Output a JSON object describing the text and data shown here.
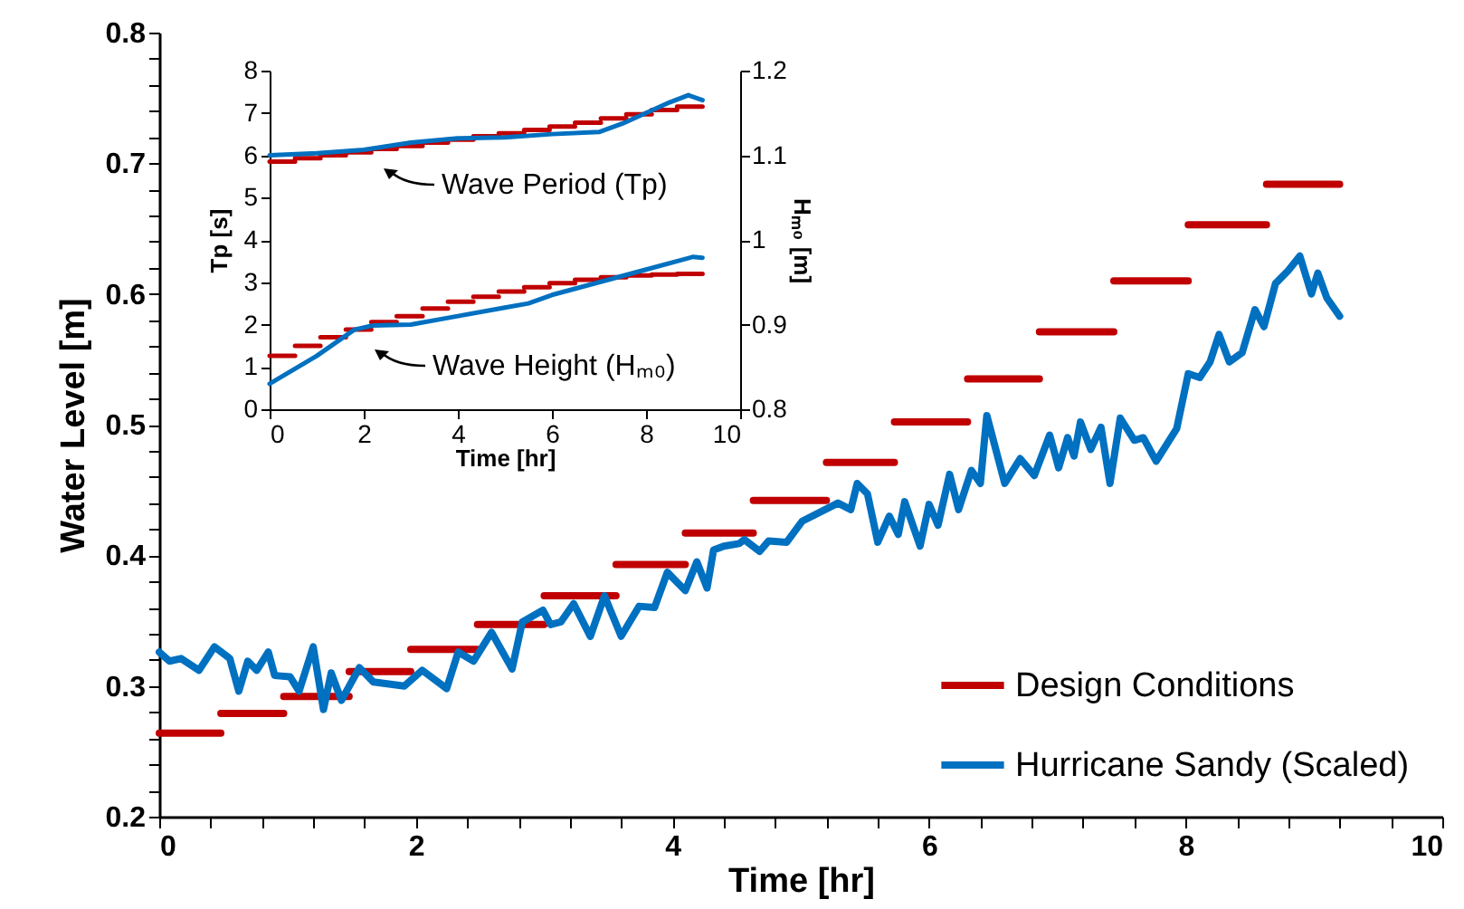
{
  "chart_data": [
    {
      "type": "line",
      "xlabel": "Time [hr]",
      "ylabel": "Water Level [m]",
      "legend": "bottom right",
      "xlim": [
        0,
        10
      ],
      "ylim": [
        0.2,
        0.8
      ],
      "xticks": [
        0,
        {
          "value": 0.4,
          "label": null
        },
        {
          "value": 0.8,
          "label": null
        },
        {
          "value": 1.2,
          "label": null
        },
        {
          "value": 1.6,
          "label": null
        },
        2,
        {
          "value": 2.4,
          "label": null
        },
        {
          "value": 2.8,
          "label": null
        },
        {
          "value": 3.2,
          "label": null
        },
        {
          "value": 3.6,
          "label": null
        },
        4,
        {
          "value": 4.4,
          "label": null
        },
        {
          "value": 4.8,
          "label": null
        },
        {
          "value": 5.2,
          "label": null
        },
        {
          "value": 5.6,
          "label": null
        },
        6,
        {
          "value": 6.4,
          "label": null
        },
        {
          "value": 6.8,
          "label": null
        },
        {
          "value": 7.2,
          "label": null
        },
        {
          "value": 7.6,
          "label": null
        },
        8,
        {
          "value": 8.4,
          "label": null
        },
        {
          "value": 8.8,
          "label": null
        },
        {
          "value": 9.2,
          "label": null
        },
        {
          "value": 9.6,
          "label": null
        },
        10
      ],
      "yticks": [
        0.2,
        {
          "value": 0.22,
          "label": null
        },
        {
          "value": 0.24,
          "label": null
        },
        {
          "value": 0.26,
          "label": null
        },
        {
          "value": 0.28,
          "label": null
        },
        0.3,
        {
          "value": 0.32,
          "label": null
        },
        {
          "value": 0.34,
          "label": null
        },
        {
          "value": 0.36,
          "label": null
        },
        {
          "value": 0.38,
          "label": null
        },
        0.4,
        {
          "value": 0.42,
          "label": null
        },
        {
          "value": 0.44,
          "label": null
        },
        {
          "value": 0.46,
          "label": null
        },
        {
          "value": 0.48,
          "label": null
        },
        0.5,
        {
          "value": 0.52,
          "label": null
        },
        {
          "value": 0.54,
          "label": null
        },
        {
          "value": 0.56,
          "label": null
        },
        {
          "value": 0.58,
          "label": null
        },
        0.6,
        {
          "value": 0.62,
          "label": null
        },
        {
          "value": 0.64,
          "label": null
        },
        {
          "value": 0.66,
          "label": null
        },
        {
          "value": 0.68,
          "label": null
        },
        0.7,
        {
          "value": 0.72,
          "label": null
        },
        {
          "value": 0.74,
          "label": null
        },
        {
          "value": 0.76,
          "label": null
        },
        {
          "value": 0.78,
          "label": null
        },
        0.8
      ],
      "series": [
        {
          "name": "Design Conditions",
          "color": "#c00000",
          "x": [
            0,
            0.48,
            null,
            0.48,
            0.97,
            null,
            0.97,
            1.48,
            null,
            1.48,
            1.96,
            null,
            1.96,
            2.48,
            null,
            2.48,
            3.0,
            null,
            3.0,
            3.56,
            null,
            3.56,
            4.1,
            null,
            4.1,
            4.63,
            null,
            4.63,
            5.2,
            null,
            5.2,
            5.73,
            null,
            5.73,
            6.3,
            null,
            6.3,
            6.86,
            null,
            6.86,
            7.44,
            null,
            7.44,
            8.02,
            null,
            8.02,
            8.63,
            null,
            8.63,
            9.2
          ],
          "values": [
            0.264,
            0.264,
            null,
            0.279,
            0.279,
            null,
            0.292,
            0.292,
            null,
            0.311,
            0.311,
            null,
            0.328,
            0.328,
            null,
            0.347,
            0.347,
            null,
            0.369,
            0.369,
            null,
            0.393,
            0.393,
            null,
            0.417,
            0.417,
            null,
            0.442,
            0.442,
            null,
            0.471,
            0.471,
            null,
            0.502,
            0.502,
            null,
            0.535,
            0.535,
            null,
            0.571,
            0.571,
            null,
            0.61,
            0.61,
            null,
            0.653,
            0.653,
            null,
            0.684,
            0.684
          ]
        },
        {
          "name": "Hurricane Sandy (Scaled)",
          "color": "#0070c0",
          "x": [
            0,
            0.08,
            0.17,
            0.31,
            0.43,
            0.55,
            0.62,
            0.69,
            0.76,
            0.85,
            0.9,
            1.02,
            1.09,
            1.2,
            1.28,
            1.34,
            1.42,
            1.56,
            1.67,
            1.91,
            2.05,
            2.24,
            2.33,
            2.45,
            2.59,
            2.75,
            2.83,
            2.99,
            3.05,
            3.13,
            3.23,
            3.36,
            3.47,
            3.6,
            3.74,
            3.86,
            3.96,
            4.1,
            4.19,
            4.27,
            4.32,
            4.4,
            4.52,
            4.56,
            4.68,
            4.75,
            4.89,
            5.01,
            5.29,
            5.39,
            5.44,
            5.52,
            5.6,
            5.69,
            5.76,
            5.81,
            5.93,
            6.0,
            6.07,
            6.16,
            6.23,
            6.33,
            6.4,
            6.45,
            6.59,
            6.71,
            6.82,
            6.94,
            7.01,
            7.08,
            7.13,
            7.18,
            7.26,
            7.34,
            7.41,
            7.49,
            7.6,
            7.67,
            7.77,
            7.93,
            8.02,
            8.11,
            8.19,
            8.26,
            8.34,
            8.44,
            8.54,
            8.61,
            8.7,
            8.8,
            8.89,
            8.98,
            9.03,
            9.1,
            9.2
          ],
          "values": [
            0.326,
            0.319,
            0.321,
            0.312,
            0.33,
            0.321,
            0.296,
            0.319,
            0.312,
            0.326,
            0.308,
            0.307,
            0.296,
            0.33,
            0.282,
            0.31,
            0.289,
            0.314,
            0.303,
            0.3,
            0.312,
            0.298,
            0.326,
            0.319,
            0.341,
            0.313,
            0.349,
            0.358,
            0.347,
            0.349,
            0.363,
            0.338,
            0.369,
            0.338,
            0.361,
            0.36,
            0.387,
            0.373,
            0.395,
            0.375,
            0.404,
            0.407,
            0.409,
            0.412,
            0.403,
            0.411,
            0.41,
            0.426,
            0.44,
            0.435,
            0.455,
            0.447,
            0.41,
            0.43,
            0.416,
            0.441,
            0.407,
            0.439,
            0.423,
            0.462,
            0.435,
            0.465,
            0.455,
            0.507,
            0.455,
            0.474,
            0.461,
            0.492,
            0.467,
            0.49,
            0.476,
            0.502,
            0.481,
            0.498,
            0.455,
            0.505,
            0.488,
            0.49,
            0.472,
            0.497,
            0.539,
            0.536,
            0.548,
            0.569,
            0.548,
            0.555,
            0.588,
            0.575,
            0.608,
            0.618,
            0.629,
            0.6,
            0.616,
            0.597,
            0.583
          ]
        }
      ]
    },
    {
      "type": "line",
      "xlabel": "Time [hr]",
      "ylabel": "Tp [s]",
      "y2label": "Hₘ₀ [m]",
      "xlim": [
        0,
        10
      ],
      "ylim": [
        0,
        8
      ],
      "y2lim": [
        0.8,
        1.2
      ],
      "xticks": [
        0,
        2,
        4,
        6,
        8,
        10
      ],
      "yticks": [
        0,
        1,
        2,
        3,
        4,
        5,
        6,
        7,
        8
      ],
      "y2ticks": [
        0.8,
        0.9,
        1,
        1.1,
        1.2
      ],
      "annotations": [
        "Wave Period (Tp)",
        "Wave Height (Hₘ₀)"
      ],
      "series": [
        {
          "color": "#c00000",
          "x": [
            0,
            0.54,
            null,
            0.54,
            1.08,
            null,
            1.08,
            1.62,
            null,
            1.62,
            2.16,
            null,
            2.16,
            2.7,
            null,
            2.7,
            3.25,
            null,
            3.25,
            3.79,
            null,
            3.79,
            4.33,
            null,
            4.33,
            4.87,
            null,
            4.87,
            5.41,
            null,
            5.41,
            5.95,
            null,
            5.95,
            6.49,
            null,
            6.49,
            7.04,
            null,
            7.04,
            7.58,
            null,
            7.58,
            8.12,
            null,
            8.12,
            8.66,
            null,
            8.66,
            9.2
          ],
          "values": [
            5.85,
            5.85,
            null,
            5.93,
            5.93,
            null,
            6.0,
            6.0,
            null,
            6.07,
            6.07,
            null,
            6.15,
            6.15,
            null,
            6.22,
            6.22,
            null,
            6.3,
            6.3,
            null,
            6.37,
            6.37,
            null,
            6.45,
            6.45,
            null,
            6.52,
            6.52,
            null,
            6.6,
            6.6,
            null,
            6.68,
            6.68,
            null,
            6.77,
            6.77,
            null,
            6.87,
            6.87,
            null,
            6.97,
            6.97,
            null,
            7.07,
            7.07,
            null,
            7.15,
            7.15
          ]
        },
        {
          "color": "#0070c0",
          "x": [
            0,
            1,
            2,
            3,
            4,
            5,
            6,
            7,
            7.5,
            8,
            8.5,
            8.9,
            9.2
          ],
          "values": [
            6.0,
            6.05,
            6.13,
            6.3,
            6.4,
            6.42,
            6.5,
            6.55,
            6.75,
            7.0,
            7.25,
            7.42,
            7.3
          ]
        },
        {
          "color": "#c00000",
          "axis": "y2",
          "x": [
            0,
            0.54,
            null,
            0.54,
            1.08,
            null,
            1.08,
            1.62,
            null,
            1.62,
            2.16,
            null,
            2.16,
            2.7,
            null,
            2.7,
            3.25,
            null,
            3.25,
            3.79,
            null,
            3.79,
            4.33,
            null,
            4.33,
            4.87,
            null,
            4.87,
            5.41,
            null,
            5.41,
            5.95,
            null,
            5.95,
            6.49,
            null,
            6.49,
            7.04,
            null,
            7.04,
            7.58,
            null,
            7.58,
            8.12,
            null,
            8.12,
            8.66,
            null,
            8.66,
            9.2
          ],
          "values": [
            0.863,
            0.863,
            null,
            0.875,
            0.875,
            null,
            0.885,
            0.885,
            null,
            0.894,
            0.894,
            null,
            0.903,
            0.903,
            null,
            0.91,
            0.91,
            null,
            0.919,
            0.919,
            null,
            0.927,
            0.927,
            null,
            0.933,
            0.933,
            null,
            0.939,
            0.939,
            null,
            0.944,
            0.944,
            null,
            0.949,
            0.949,
            null,
            0.953,
            0.953,
            null,
            0.956,
            0.956,
            null,
            0.958,
            0.958,
            null,
            0.959,
            0.959,
            null,
            0.96,
            0.96
          ]
        },
        {
          "color": "#0070c0",
          "axis": "y2",
          "x": [
            0,
            1,
            1.8,
            2.2,
            3,
            4,
            5,
            5.5,
            6,
            7,
            8,
            9,
            9.2
          ],
          "values": [
            0.83,
            0.863,
            0.894,
            0.899,
            0.9,
            0.91,
            0.92,
            0.925,
            0.935,
            0.95,
            0.965,
            0.98,
            0.979
          ]
        }
      ]
    }
  ]
}
